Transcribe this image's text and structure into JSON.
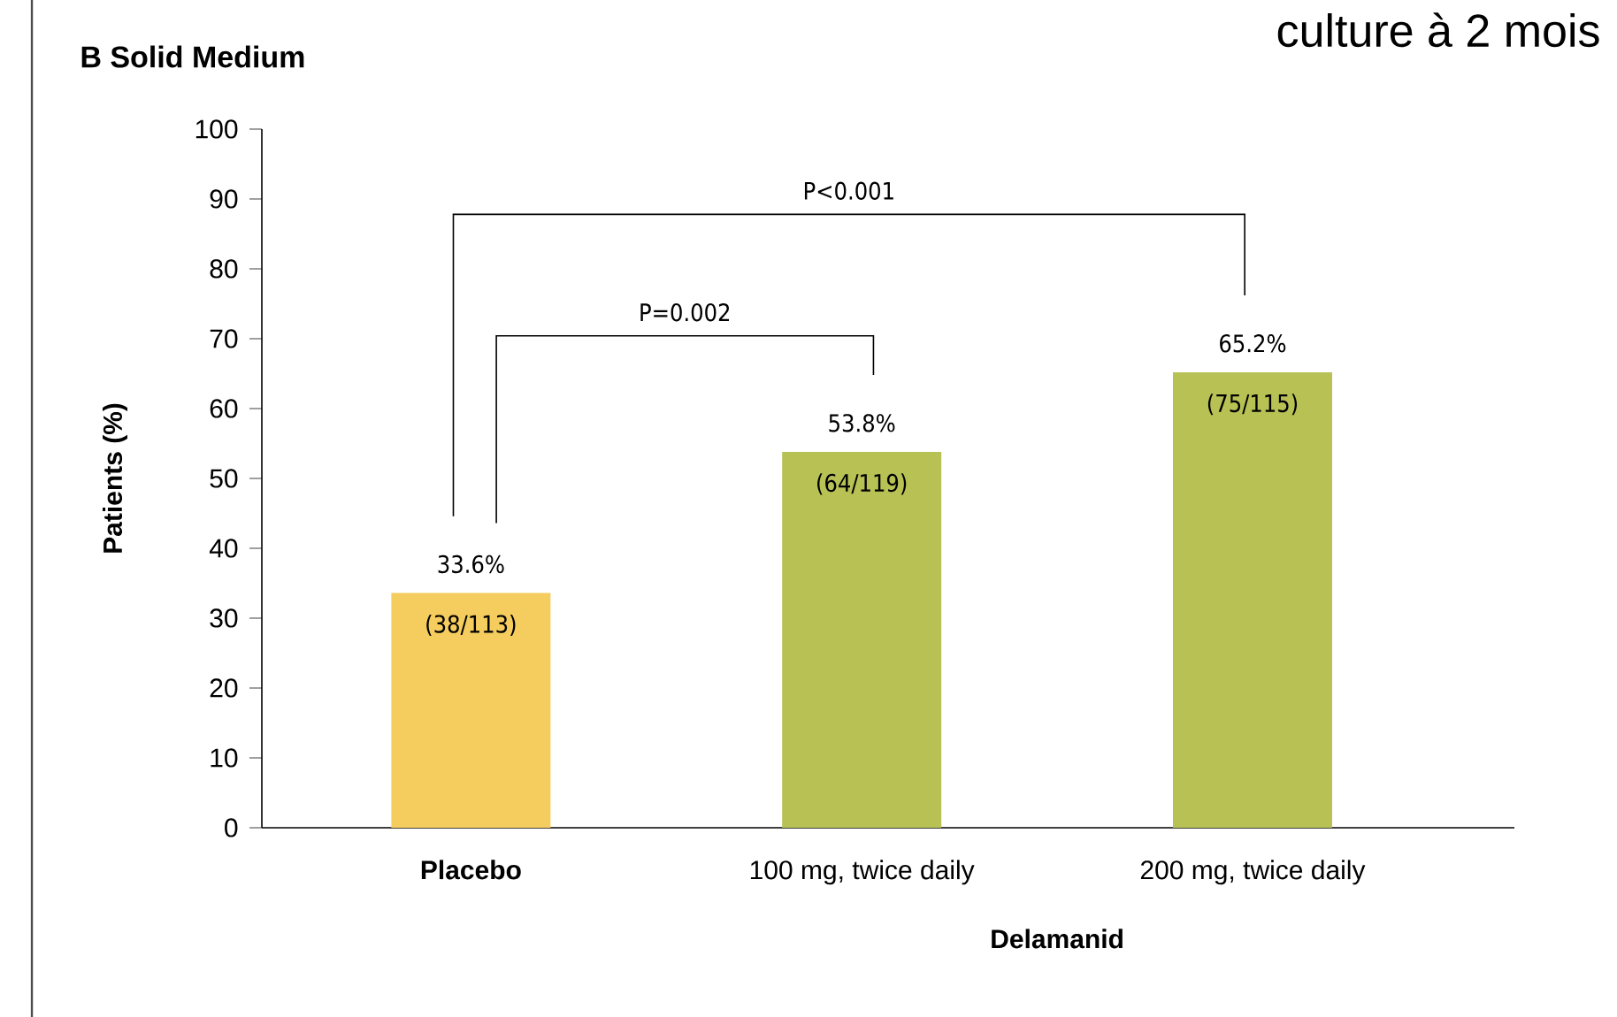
{
  "chart_data": {
    "type": "bar",
    "title": "B Solid Medium",
    "xlabel": "Delamanid",
    "ylabel": "Patients (%)",
    "categories": [
      "Placebo",
      "100 mg, twice daily",
      "200 mg, twice daily"
    ],
    "values": [
      33.6,
      53.8,
      65.2
    ],
    "colors": [
      "#f5cd5e",
      "#b7c154",
      "#b7c154"
    ],
    "value_labels": [
      "33.6%",
      "53.8%",
      "65.2%"
    ],
    "ylim": [
      0,
      100
    ],
    "yticks": [
      0,
      10,
      20,
      30,
      40,
      50,
      60,
      70,
      80,
      90,
      100
    ],
    "annotations": [
      "culture à 2 mois",
      {
        "text": "(38/113)",
        "x": "Placebo",
        "y": 33.6
      },
      {
        "text": "(64/119)",
        "x": "100 mg, twice daily",
        "y": 53.8
      },
      {
        "text": "(75/115)",
        "x": "200 mg, twice daily",
        "y": 65.2
      },
      "P=0.002",
      "P<0.001"
    ]
  }
}
